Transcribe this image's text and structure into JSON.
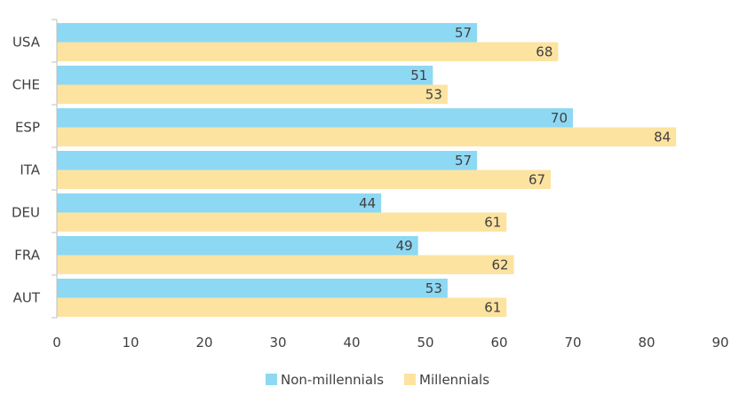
{
  "chart_data": {
    "type": "bar",
    "orientation": "horizontal",
    "title": "",
    "xlabel": "",
    "ylabel": "",
    "categories": [
      "USA",
      "CHE",
      "ESP",
      "ITA",
      "DEU",
      "FRA",
      "AUT"
    ],
    "series": [
      {
        "name": "Non-millennials",
        "color": "#8dd8f3",
        "values": [
          57,
          51,
          70,
          57,
          44,
          49,
          53
        ]
      },
      {
        "name": "Millennials",
        "color": "#fde3a0",
        "values": [
          68,
          53,
          84,
          67,
          61,
          62,
          61
        ]
      }
    ],
    "data_labels": {
      "Non-millennials": [
        "57",
        "51",
        "70",
        "57",
        "44",
        "49",
        "53"
      ],
      "Millennials": [
        "68",
        "53",
        "84",
        "67",
        "61",
        "62",
        "61"
      ]
    },
    "x_ticks": [
      "0",
      "10",
      "20",
      "30",
      "40",
      "50",
      "60",
      "70",
      "80",
      "90"
    ],
    "xlim": [
      0,
      90
    ],
    "grid": false,
    "legend_position": "bottom"
  }
}
